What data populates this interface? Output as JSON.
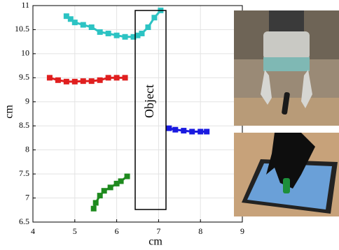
{
  "chart_data": {
    "type": "line",
    "marker": "square",
    "x_label": "cm",
    "y_label": "cm",
    "annotation": "Object",
    "xlim": [
      4,
      9
    ],
    "xticks": [
      4,
      5,
      6,
      7,
      8,
      9
    ],
    "ylim": [
      6.5,
      11
    ],
    "yticks": [
      6.5,
      7,
      7.5,
      8,
      8.5,
      9,
      9.5,
      10,
      10.5,
      11
    ],
    "grid": true,
    "series": [
      {
        "color": "#2cc3c3",
        "x": [
          4.8,
          4.9,
          5.0,
          5.2,
          5.4,
          5.6,
          5.8,
          6.0,
          6.2,
          6.4,
          6.5,
          6.6,
          6.75,
          6.9,
          7.05
        ],
        "values": [
          10.78,
          10.72,
          10.65,
          10.6,
          10.55,
          10.45,
          10.42,
          10.38,
          10.35,
          10.35,
          10.38,
          10.42,
          10.55,
          10.75,
          10.9
        ]
      },
      {
        "color": "#e01f1f",
        "x": [
          4.4,
          4.6,
          4.8,
          5.0,
          5.2,
          5.4,
          5.6,
          5.8,
          6.0,
          6.2
        ],
        "values": [
          9.5,
          9.45,
          9.42,
          9.42,
          9.43,
          9.43,
          9.45,
          9.5,
          9.5,
          9.5
        ]
      },
      {
        "color": "#1a1ae0",
        "x": [
          7.25,
          7.4,
          7.6,
          7.8,
          8.0,
          8.15
        ],
        "values": [
          8.45,
          8.42,
          8.4,
          8.38,
          8.38,
          8.38
        ]
      },
      {
        "color": "#1e8a1e",
        "x": [
          5.45,
          5.5,
          5.6,
          5.7,
          5.85,
          6.0,
          6.1,
          6.25
        ],
        "values": [
          6.78,
          6.9,
          7.05,
          7.15,
          7.22,
          7.3,
          7.35,
          7.45
        ]
      }
    ]
  }
}
